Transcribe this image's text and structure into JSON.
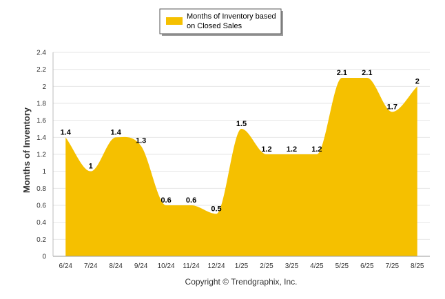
{
  "chart_data": {
    "type": "area",
    "categories": [
      "6/24",
      "7/24",
      "8/24",
      "9/24",
      "10/24",
      "11/24",
      "12/24",
      "1/25",
      "2/25",
      "3/25",
      "4/25",
      "5/25",
      "6/25",
      "7/25",
      "8/25"
    ],
    "series": [
      {
        "name": "Months of Inventory based on Closed Sales",
        "values": [
          1.4,
          1,
          1.4,
          1.3,
          0.6,
          0.6,
          0.5,
          1.5,
          1.2,
          1.2,
          1.2,
          2.1,
          2.1,
          1.7,
          2
        ]
      }
    ],
    "data_labels": [
      "1.4",
      "1",
      "1.4",
      "1.3",
      "0.6",
      "0.6",
      "0.5",
      "1.5",
      "1.2",
      "1.2",
      "1.2",
      "2.1",
      "2.1",
      "1.7",
      "2"
    ],
    "ylabel": "Months of Inventory",
    "xlabel": "",
    "ylim": [
      0,
      2.4
    ],
    "yticks": [
      "0",
      "0.2",
      "0.4",
      "0.6",
      "0.8",
      "1",
      "1.2",
      "1.4",
      "1.6",
      "1.8",
      "2",
      "2.2",
      "2.4"
    ],
    "legend_lines": [
      "Months of Inventory based",
      "on Closed Sales"
    ],
    "legend_position": "top-center",
    "grid": true,
    "fill_color": "#F5C000",
    "source_text": "Copyright © Trendgraphix, Inc."
  }
}
